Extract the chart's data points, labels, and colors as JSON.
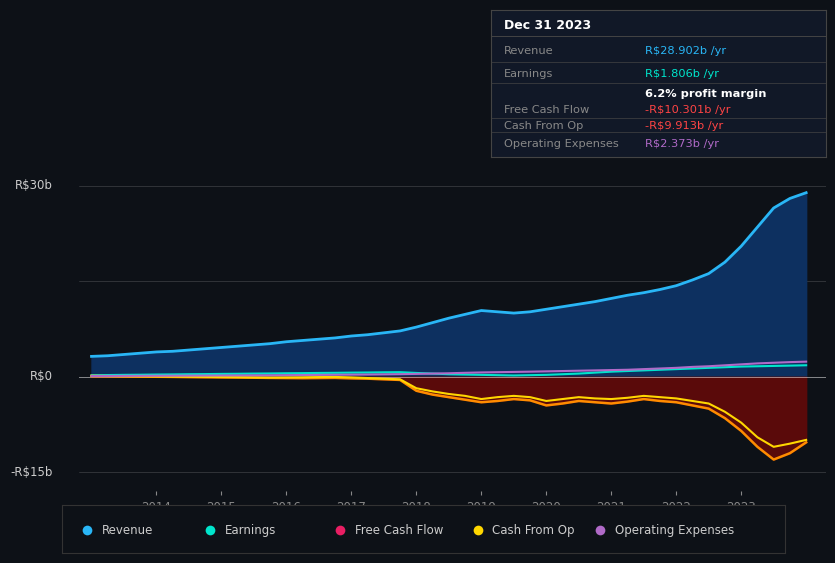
{
  "background_color": "#0d1117",
  "plot_bg_color": "#0d1117",
  "y_label_top": "R$30b",
  "y_label_mid": "R$0",
  "y_label_bot": "-R$15b",
  "x_ticks": [
    2014,
    2015,
    2016,
    2017,
    2018,
    2019,
    2020,
    2021,
    2022,
    2023
  ],
  "ylim": [
    -18,
    33
  ],
  "xlim": [
    2012.8,
    2024.3
  ],
  "years": [
    2013.0,
    2013.25,
    2013.5,
    2013.75,
    2014.0,
    2014.25,
    2014.5,
    2014.75,
    2015.0,
    2015.25,
    2015.5,
    2015.75,
    2016.0,
    2016.25,
    2016.5,
    2016.75,
    2017.0,
    2017.25,
    2017.5,
    2017.75,
    2018.0,
    2018.25,
    2018.5,
    2018.75,
    2019.0,
    2019.25,
    2019.5,
    2019.75,
    2020.0,
    2020.25,
    2020.5,
    2020.75,
    2021.0,
    2021.25,
    2021.5,
    2021.75,
    2022.0,
    2022.25,
    2022.5,
    2022.75,
    2023.0,
    2023.25,
    2023.5,
    2023.75,
    2024.0
  ],
  "revenue": [
    3.2,
    3.3,
    3.5,
    3.7,
    3.9,
    4.0,
    4.2,
    4.4,
    4.6,
    4.8,
    5.0,
    5.2,
    5.5,
    5.7,
    5.9,
    6.1,
    6.4,
    6.6,
    6.9,
    7.2,
    7.8,
    8.5,
    9.2,
    9.8,
    10.4,
    10.2,
    10.0,
    10.2,
    10.6,
    11.0,
    11.4,
    11.8,
    12.3,
    12.8,
    13.2,
    13.7,
    14.3,
    15.2,
    16.2,
    18.0,
    20.5,
    23.5,
    26.5,
    28.0,
    28.9
  ],
  "earnings": [
    0.25,
    0.27,
    0.3,
    0.32,
    0.35,
    0.37,
    0.4,
    0.42,
    0.45,
    0.47,
    0.5,
    0.52,
    0.55,
    0.57,
    0.6,
    0.62,
    0.65,
    0.67,
    0.7,
    0.72,
    0.6,
    0.5,
    0.4,
    0.35,
    0.3,
    0.25,
    0.2,
    0.25,
    0.3,
    0.4,
    0.5,
    0.65,
    0.8,
    0.9,
    1.0,
    1.1,
    1.2,
    1.3,
    1.4,
    1.5,
    1.6,
    1.65,
    1.7,
    1.75,
    1.806
  ],
  "free_cash_flow": [
    0.1,
    0.08,
    0.05,
    0.02,
    0.0,
    -0.02,
    -0.05,
    -0.08,
    -0.1,
    -0.12,
    -0.15,
    -0.18,
    -0.2,
    -0.22,
    -0.2,
    -0.18,
    -0.25,
    -0.3,
    -0.4,
    -0.5,
    -2.2,
    -2.8,
    -3.2,
    -3.6,
    -4.0,
    -3.8,
    -3.5,
    -3.7,
    -4.5,
    -4.2,
    -3.8,
    -4.0,
    -4.2,
    -3.9,
    -3.5,
    -3.8,
    -4.0,
    -4.5,
    -5.0,
    -6.5,
    -8.5,
    -11.0,
    -13.0,
    -12.0,
    -10.301
  ],
  "cash_from_op": [
    0.15,
    0.12,
    0.1,
    0.08,
    0.05,
    0.02,
    0.0,
    -0.02,
    -0.05,
    -0.07,
    -0.1,
    -0.12,
    -0.1,
    -0.08,
    -0.05,
    -0.03,
    -0.1,
    -0.2,
    -0.3,
    -0.4,
    -1.8,
    -2.3,
    -2.7,
    -3.0,
    -3.5,
    -3.2,
    -3.0,
    -3.2,
    -3.8,
    -3.5,
    -3.2,
    -3.4,
    -3.5,
    -3.3,
    -3.0,
    -3.2,
    -3.4,
    -3.8,
    -4.2,
    -5.5,
    -7.2,
    -9.5,
    -11.0,
    -10.5,
    -9.913
  ],
  "operating_expenses": [
    0.12,
    0.13,
    0.14,
    0.15,
    0.16,
    0.17,
    0.18,
    0.19,
    0.2,
    0.21,
    0.22,
    0.23,
    0.25,
    0.27,
    0.29,
    0.31,
    0.33,
    0.35,
    0.38,
    0.41,
    0.45,
    0.5,
    0.55,
    0.62,
    0.68,
    0.72,
    0.76,
    0.8,
    0.85,
    0.9,
    0.95,
    1.0,
    1.05,
    1.1,
    1.2,
    1.3,
    1.4,
    1.55,
    1.65,
    1.8,
    1.95,
    2.1,
    2.2,
    2.3,
    2.373
  ],
  "revenue_color": "#29b6f6",
  "revenue_fill": "#0d3060",
  "earnings_color": "#00e5cc",
  "fcf_color": "#ff8c00",
  "fcf_fill": "#5a0a0a",
  "cashop_color": "#ffd700",
  "opex_color": "#b06ac8",
  "legend_items": [
    {
      "label": "Revenue",
      "color": "#29b6f6"
    },
    {
      "label": "Earnings",
      "color": "#00e5cc"
    },
    {
      "label": "Free Cash Flow",
      "color": "#e91e63"
    },
    {
      "label": "Cash From Op",
      "color": "#ffd700"
    },
    {
      "label": "Operating Expenses",
      "color": "#b06ac8"
    }
  ],
  "tooltip_bg": "#111827",
  "tooltip_border": "#444444",
  "tooltip_title": "Dec 31 2023",
  "tooltip_rows": [
    {
      "label": "Revenue",
      "value": "R$28.902b /yr",
      "label_color": "#888888",
      "value_color": "#29b6f6"
    },
    {
      "label": "Earnings",
      "value": "R$1.806b /yr",
      "label_color": "#888888",
      "value_color": "#00e5cc"
    },
    {
      "label": "",
      "value": "6.2% profit margin",
      "label_color": "#888888",
      "value_color": "#ffffff"
    },
    {
      "label": "Free Cash Flow",
      "value": "-R$10.301b /yr",
      "label_color": "#888888",
      "value_color": "#ff4444"
    },
    {
      "label": "Cash From Op",
      "value": "-R$9.913b /yr",
      "label_color": "#888888",
      "value_color": "#ff4444"
    },
    {
      "label": "Operating Expenses",
      "value": "R$2.373b /yr",
      "label_color": "#888888",
      "value_color": "#b06ac8"
    }
  ]
}
